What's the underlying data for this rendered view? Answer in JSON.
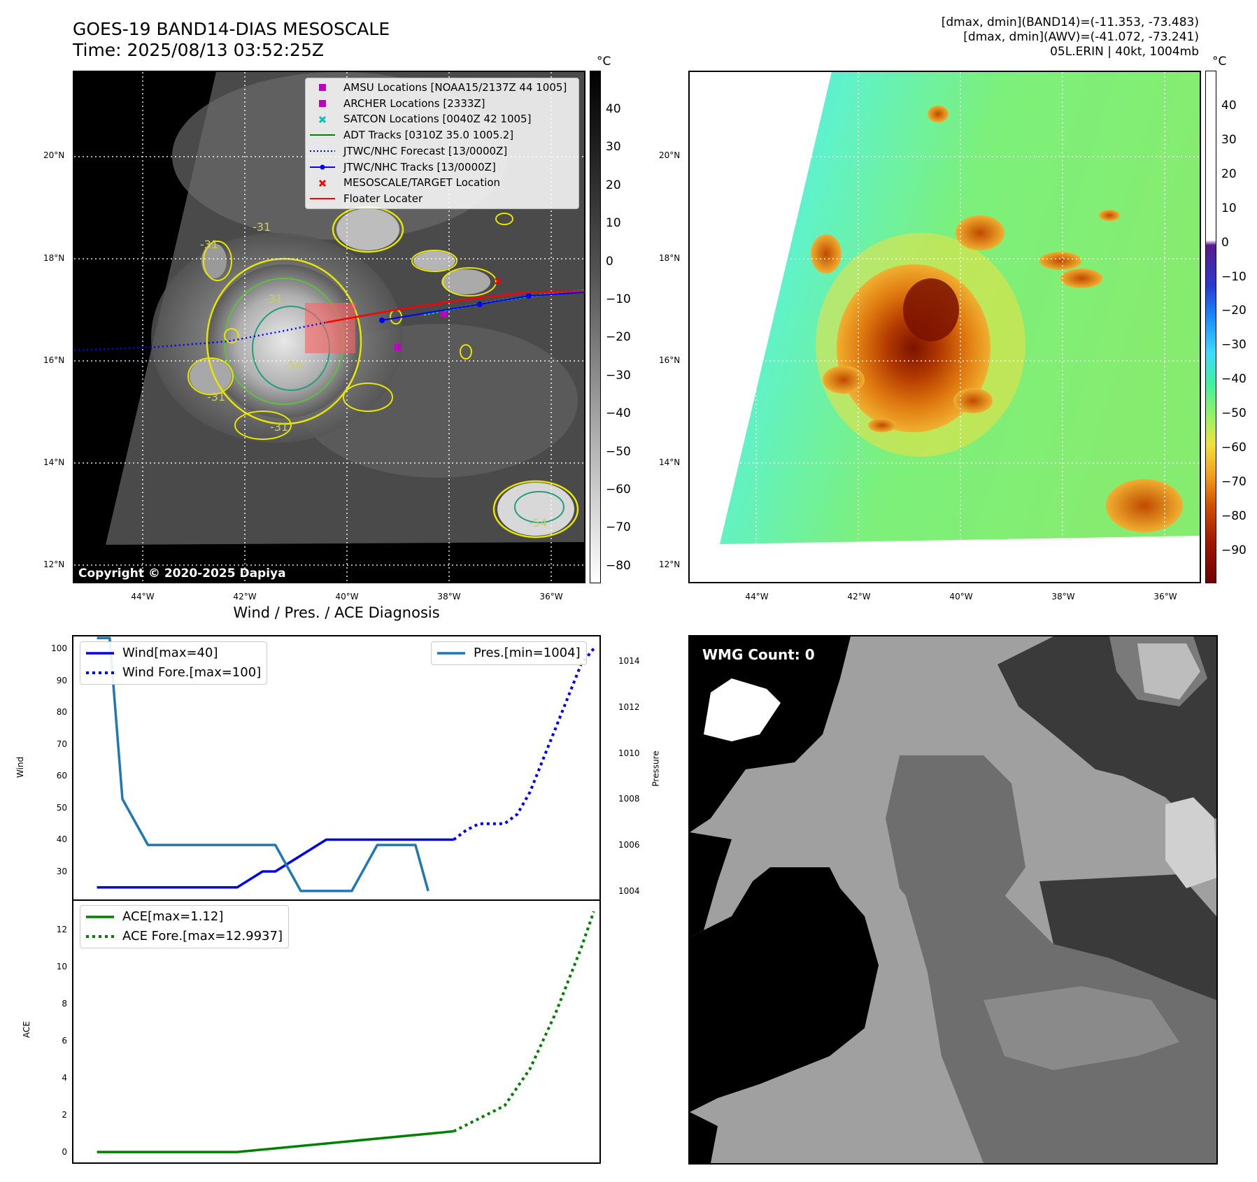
{
  "header": {
    "title_line1": "GOES-19 BAND14-DIAS MESOSCALE",
    "title_line2": "Time: 2025/08/13 03:52:25Z",
    "stats_line1": "[dmax, dmin](BAND14)=(-11.353, -73.483)",
    "stats_line2": "[dmax, dmin](AWV)=(-41.072, -73.241)",
    "stats_line3": "05L.ERIN | 40kt, 1004mb"
  },
  "ir_panel": {
    "colorbar_unit": "°C",
    "colorbar_ticks": [
      "40",
      "30",
      "20",
      "10",
      "0",
      "−10",
      "−20",
      "−30",
      "−40",
      "−50",
      "−60",
      "−70",
      "−80"
    ],
    "lat_labels": [
      "20°N",
      "18°N",
      "16°N",
      "14°N",
      "12°N"
    ],
    "lon_labels": [
      "44°W",
      "42°W",
      "40°W",
      "38°W",
      "36°W"
    ],
    "copyright": "Copyright © 2020-2025 Dapiya",
    "contour_labels": [
      "-31",
      "-31",
      "-31",
      "-54",
      "-31",
      "-31",
      "-54"
    ],
    "legend": [
      {
        "label": "AMSU Locations [NOAA15/2137Z 44 1005]",
        "color": "#c000c0"
      },
      {
        "label": "ARCHER Locations [2333Z]",
        "color": "#c000c0"
      },
      {
        "label": "SATCON Locations [0040Z 42 1005]",
        "color": "#00bfbf"
      },
      {
        "label": "ADT Tracks [0310Z 35.0 1005.2]",
        "color": "#008000"
      },
      {
        "label": "JTWC/NHC Forecast [13/0000Z]",
        "color": "#0000ff"
      },
      {
        "label": "JTWC/NHC Tracks [13/0000Z]",
        "color": "#0000ff"
      },
      {
        "label": "MESOSCALE/TARGET Location",
        "color": "#ff0000"
      },
      {
        "label": "Floater Locater",
        "color": "#ff0000"
      }
    ]
  },
  "awv_panel": {
    "colorbar_unit": "°C",
    "colorbar_ticks": [
      "40",
      "30",
      "20",
      "10",
      "0",
      "−10",
      "−20",
      "−30",
      "−40",
      "−50",
      "−60",
      "−70",
      "−80",
      "−90"
    ],
    "lat_labels": [
      "20°N",
      "18°N",
      "16°N",
      "14°N",
      "12°N"
    ],
    "lon_labels": [
      "44°W",
      "42°W",
      "40°W",
      "38°W",
      "36°W"
    ]
  },
  "diagnosis": {
    "title": "Wind / Pres. / ACE Diagnosis",
    "wind_axis_label": "Wind",
    "pressure_axis_label": "Pressure",
    "ace_axis_label": "ACE",
    "wind_legend": [
      "Wind[max=40]",
      "Wind Fore.[max=100]"
    ],
    "pres_legend": "Pres.[min=1004]",
    "ace_legend": [
      "ACE[max=1.12]",
      "ACE Fore.[max=12.9937]"
    ]
  },
  "wmg_panel": {
    "label": "WMG Count: 0"
  },
  "chart_data": [
    {
      "type": "line",
      "title": "Wind / Pres. / ACE Diagnosis",
      "ylabel": "Wind",
      "ylim": [
        21,
        104
      ],
      "xlim": [
        -1.9,
        39.5
      ],
      "series": [
        {
          "name": "Wind[max=40]",
          "color": "#0000ee",
          "style": "solid",
          "x": [
            0,
            7,
            9,
            11,
            13,
            14,
            18,
            22,
            24,
            26,
            28
          ],
          "values": [
            25,
            25,
            25,
            25,
            30,
            30,
            40,
            40,
            40,
            40,
            40
          ]
        },
        {
          "name": "Wind Fore.[max=100]",
          "color": "#0000ee",
          "style": "dotted",
          "x": [
            28,
            29,
            30,
            32,
            33,
            34,
            35,
            36,
            37,
            38,
            39
          ],
          "values": [
            40,
            43,
            45,
            45,
            48,
            55,
            65,
            75,
            85,
            95,
            100
          ]
        }
      ],
      "yticks": [
        "100",
        "90",
        "80",
        "70",
        "60",
        "50",
        "40",
        "30"
      ]
    },
    {
      "type": "line",
      "ylabel": "Pressure",
      "ylim": [
        1003.6,
        1015.1
      ],
      "xlim": [
        -1.9,
        39.5
      ],
      "series": [
        {
          "name": "Pres.[min=1004]",
          "color": "#1f77b4",
          "style": "solid",
          "x": [
            0,
            1,
            2,
            4,
            6,
            8,
            10,
            12,
            14,
            16,
            18,
            20,
            22,
            23,
            24,
            25,
            26
          ],
          "values": [
            1015,
            1015,
            1008,
            1006,
            1006,
            1006,
            1006,
            1006,
            1006,
            1004,
            1004,
            1004,
            1006,
            1006,
            1006,
            1006,
            1004
          ]
        }
      ],
      "yticks": [
        "1014",
        "1012",
        "1010",
        "1008",
        "1006",
        "1004"
      ]
    },
    {
      "type": "line",
      "ylabel": "ACE",
      "ylim": [
        -0.6,
        13.6
      ],
      "xlim": [
        -1.9,
        39.5
      ],
      "series": [
        {
          "name": "ACE[max=1.12]",
          "color": "#008000",
          "style": "solid",
          "x": [
            0,
            11,
            28
          ],
          "values": [
            0,
            0,
            1.12
          ]
        },
        {
          "name": "ACE Fore.[max=12.9937]",
          "color": "#008000",
          "style": "dotted",
          "x": [
            28,
            32,
            34,
            36,
            38,
            39
          ],
          "values": [
            1.12,
            2.5,
            4.5,
            7.5,
            11,
            12.99
          ]
        }
      ],
      "yticks": [
        "12",
        "10",
        "8",
        "6",
        "4",
        "2",
        "0"
      ]
    }
  ]
}
